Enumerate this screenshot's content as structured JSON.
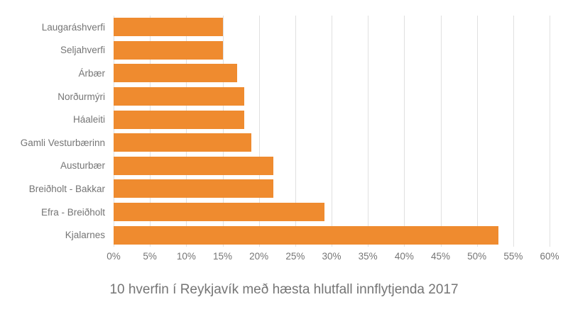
{
  "chart_data": {
    "type": "bar",
    "orientation": "horizontal",
    "title": "10 hverfin í Reykjavík með hæsta hlutfall innflytjenda 2017",
    "categories": [
      "Laugaráshverfi",
      "Seljahverfi",
      "Árbær",
      "Norðurmýri",
      "Háaleiti",
      "Gamli Vesturbærinn",
      "Austurbær",
      "Breiðholt - Bakkar",
      "Efra - Breiðholt",
      "Kjalarnes"
    ],
    "values": [
      15,
      15,
      17,
      18,
      18,
      19,
      22,
      22,
      29,
      53
    ],
    "value_unit": "%",
    "xlabel": "",
    "ylabel": "",
    "xlim": [
      0,
      60
    ],
    "xtick_step": 5,
    "xtick_labels": [
      "0%",
      "5%",
      "10%",
      "15%",
      "20%",
      "25%",
      "30%",
      "35%",
      "40%",
      "45%",
      "50%",
      "55%",
      "60%"
    ],
    "grid": true,
    "legend_position": "none",
    "bar_color": "#ef8b2f",
    "gridline_color": "#e0e0e0",
    "text_color": "#757575",
    "background_color": "#ffffff"
  }
}
